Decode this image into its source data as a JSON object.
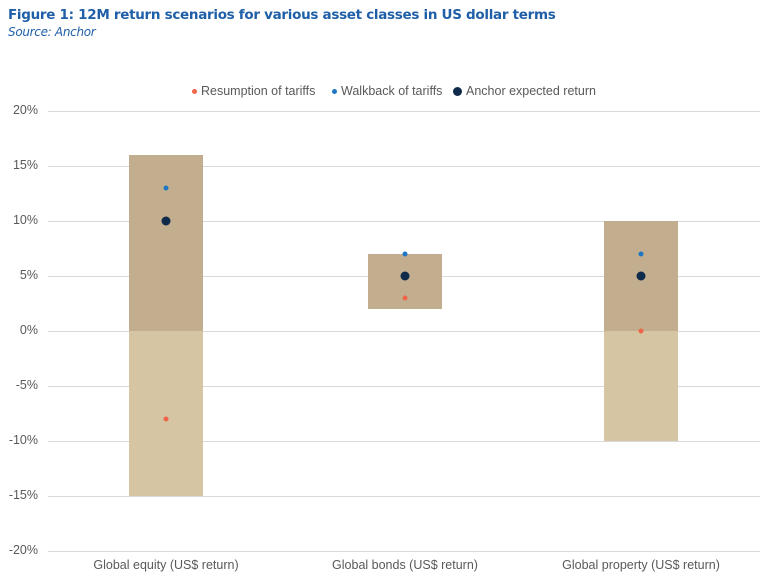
{
  "header": {
    "title": "Figure 1: 12M return scenarios for various asset classes in US dollar terms",
    "source": "Source: Anchor"
  },
  "legend": [
    {
      "label": "Resumption of tariffs",
      "color": "#f0654a",
      "size": 5
    },
    {
      "label": "Walkback of tariffs",
      "color": "#1f77c4",
      "size": 5
    },
    {
      "label": "Anchor expected return",
      "color": "#0f2a4a",
      "size": 9
    }
  ],
  "axis": {
    "yticks": [
      "20%",
      "15%",
      "10%",
      "5%",
      "0%",
      "-5%",
      "-10%",
      "-15%",
      "-20%"
    ]
  },
  "categories": [
    "Global equity (US$ return)",
    "Global bonds (US$ return)",
    "Global property (US$ return)"
  ],
  "colors": {
    "bar_positive": "#c2ae8e",
    "bar_negative": "#d6c5a2",
    "grid": "#d9d9d9",
    "title": "#1f5fa8"
  },
  "chart_data": {
    "type": "floating-bar-with-scatter",
    "title": "Figure 1: 12M return scenarios for various asset classes in US dollar terms",
    "subtitle": "Source: Anchor",
    "xlabel": "",
    "ylabel": "",
    "ylim": [
      -20,
      20
    ],
    "ytick_step": 5,
    "grid": true,
    "legend_position": "top",
    "categories": [
      "Global equity (US$ return)",
      "Global bonds (US$ return)",
      "Global property (US$ return)"
    ],
    "range_bars": [
      {
        "category": "Global equity (US$ return)",
        "low": -15,
        "high": 16
      },
      {
        "category": "Global bonds (US$ return)",
        "low": 2,
        "high": 7
      },
      {
        "category": "Global property (US$ return)",
        "low": -10,
        "high": 10
      }
    ],
    "series": [
      {
        "name": "Resumption of tariffs",
        "values": [
          -8,
          3,
          0
        ]
      },
      {
        "name": "Walkback of tariffs",
        "values": [
          13,
          7,
          7
        ]
      },
      {
        "name": "Anchor expected return",
        "values": [
          10,
          5,
          5
        ]
      }
    ]
  }
}
